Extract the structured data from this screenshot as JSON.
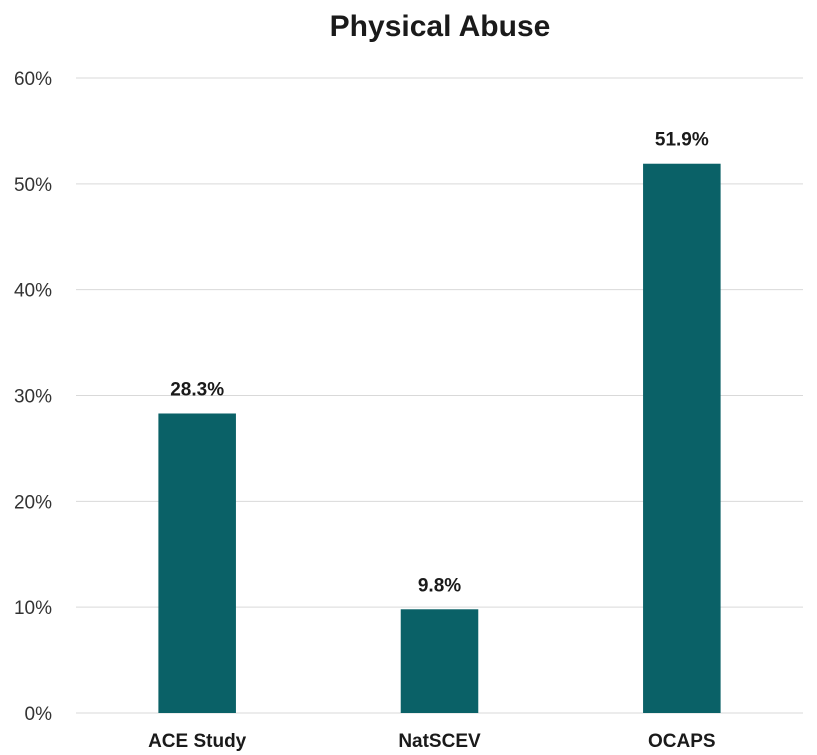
{
  "chart_data": {
    "type": "bar",
    "title": "Physical Abuse",
    "xlabel": "",
    "ylabel": "",
    "categories": [
      "ACE Study",
      "NatSCEV",
      "OCAPS"
    ],
    "values": [
      28.3,
      9.8,
      51.9
    ],
    "data_labels": [
      "28.3%",
      "9.8%",
      "51.9%"
    ],
    "ylim": [
      0,
      60
    ],
    "y_ticks": [
      0,
      10,
      20,
      30,
      40,
      50,
      60
    ],
    "y_tick_labels": [
      "0%",
      "10%",
      "20%",
      "30%",
      "40%",
      "50%",
      "60%"
    ],
    "grid": true,
    "legend": "none",
    "bar_color": "#0a6167"
  }
}
